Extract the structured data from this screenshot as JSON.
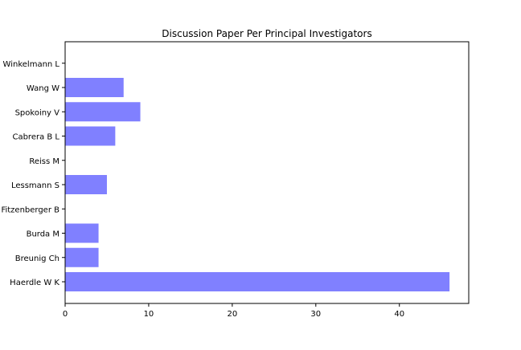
{
  "chart_data": {
    "type": "bar",
    "orientation": "horizontal",
    "title": "Discussion Paper Per Principal Investigators",
    "xlabel": "",
    "ylabel": "",
    "categories": [
      "Haerdle W K",
      "Breunig Ch",
      "Burda M",
      "Fitzenberger B",
      "Lessmann S",
      "Reiss M",
      "Cabrera B L",
      "Spokoiny V",
      "Wang W",
      "Winkelmann L"
    ],
    "values": [
      46,
      4,
      4,
      0,
      5,
      0,
      6,
      9,
      7,
      0
    ],
    "xlim": [
      0,
      48.3
    ],
    "xticks": [
      0,
      10,
      20,
      30,
      40
    ],
    "xtick_labels": [
      "0",
      "10",
      "20",
      "30",
      "40"
    ],
    "bar_color": "#8080ff",
    "grid": false,
    "legend": "none"
  }
}
